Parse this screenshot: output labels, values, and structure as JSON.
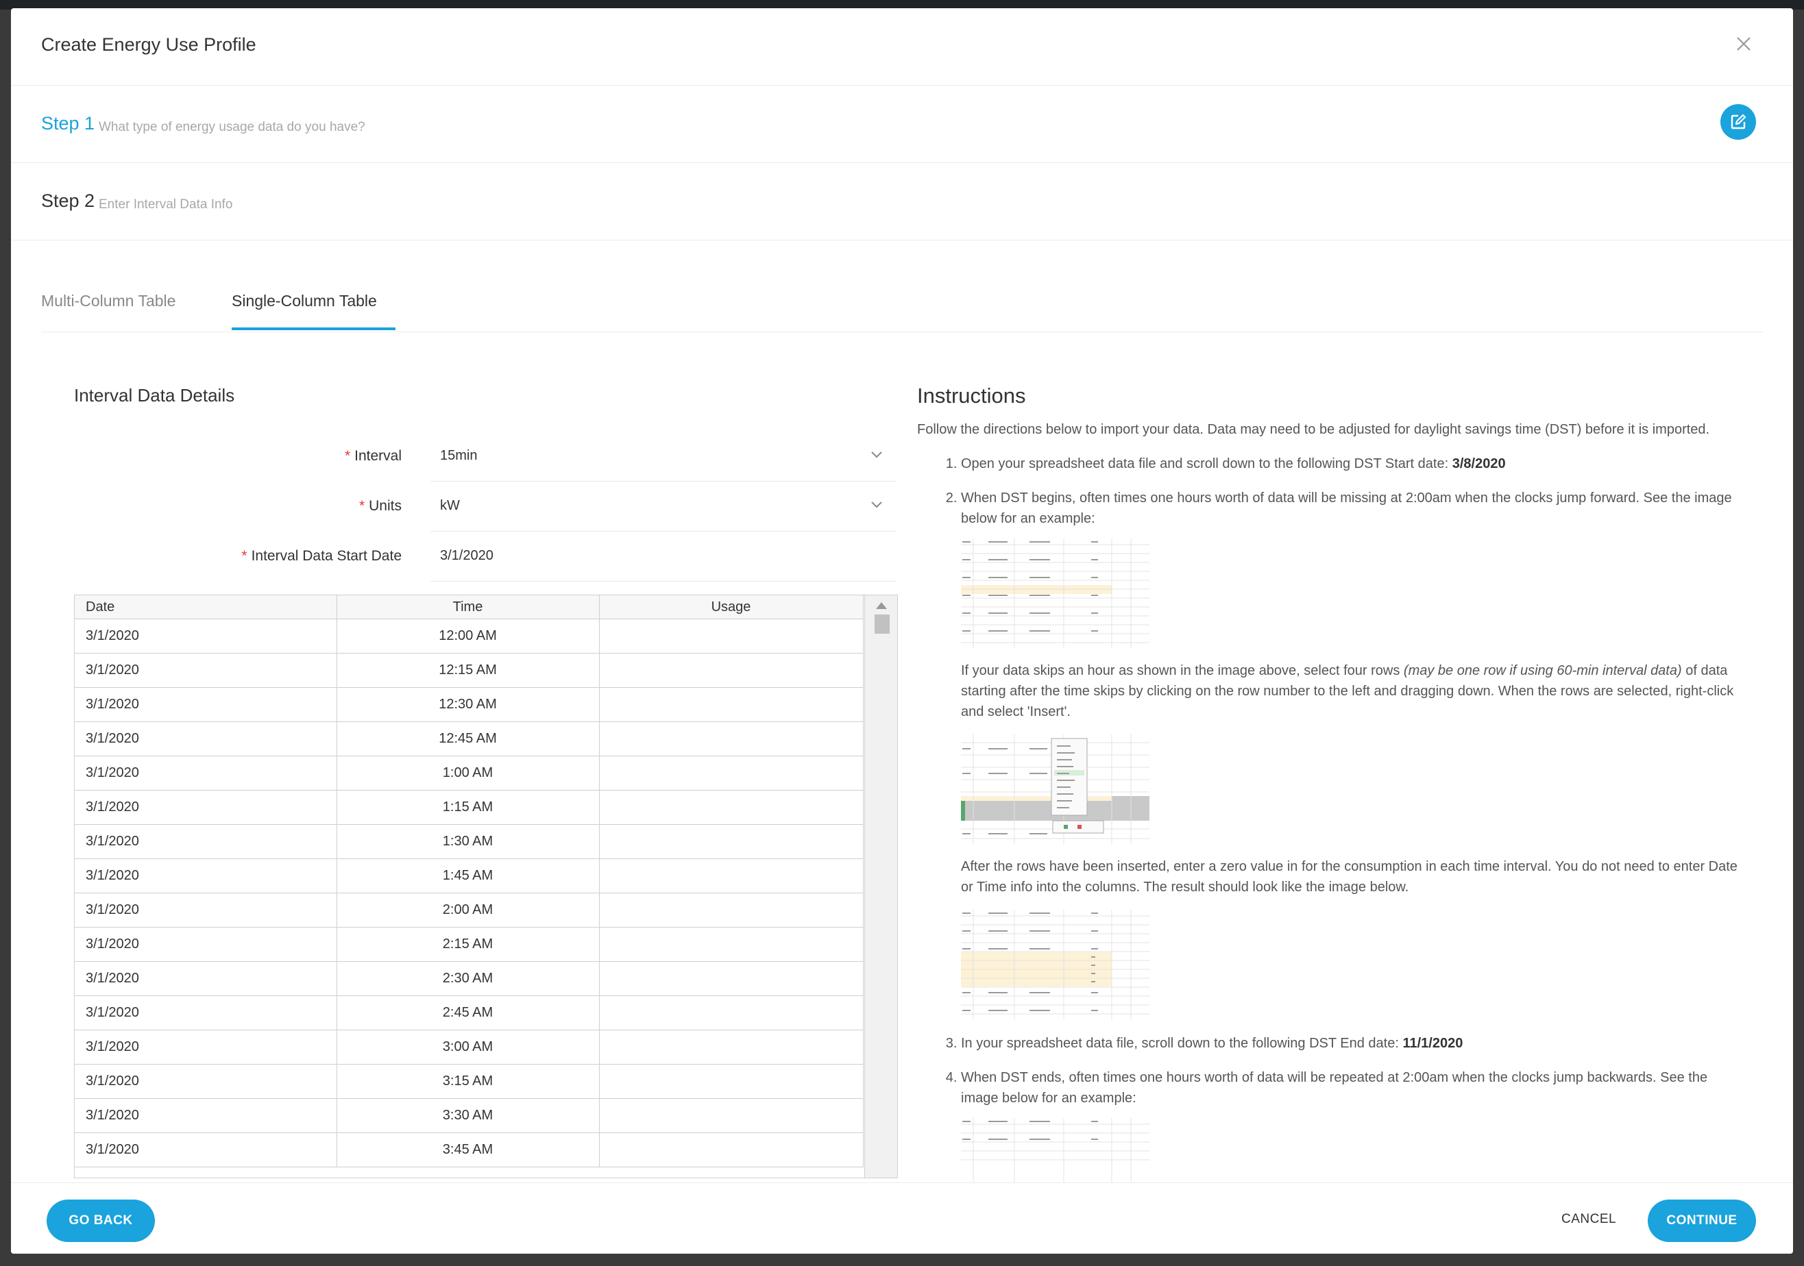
{
  "modal": {
    "title": "Create Energy Use Profile"
  },
  "steps": [
    {
      "label": "Step 1",
      "desc": "What type of energy usage data do you have?"
    },
    {
      "label": "Step 2",
      "desc": "Enter Interval Data Info"
    }
  ],
  "tabs": [
    {
      "label": "Multi-Column Table"
    },
    {
      "label": "Single-Column Table",
      "active": true
    }
  ],
  "details": {
    "title": "Interval Data Details",
    "fields": [
      {
        "label": "Interval",
        "value": "15min"
      },
      {
        "label": "Units",
        "value": "kW"
      },
      {
        "label": "Interval Data Start Date",
        "value": "3/1/2020"
      }
    ]
  },
  "table": {
    "headers": [
      "Date",
      "Time",
      "Usage"
    ],
    "rows": [
      {
        "date": "3/1/2020",
        "time": "12:00 AM",
        "usage": ""
      },
      {
        "date": "3/1/2020",
        "time": "12:15 AM",
        "usage": ""
      },
      {
        "date": "3/1/2020",
        "time": "12:30 AM",
        "usage": ""
      },
      {
        "date": "3/1/2020",
        "time": "12:45 AM",
        "usage": ""
      },
      {
        "date": "3/1/2020",
        "time": "1:00 AM",
        "usage": ""
      },
      {
        "date": "3/1/2020",
        "time": "1:15 AM",
        "usage": ""
      },
      {
        "date": "3/1/2020",
        "time": "1:30 AM",
        "usage": ""
      },
      {
        "date": "3/1/2020",
        "time": "1:45 AM",
        "usage": ""
      },
      {
        "date": "3/1/2020",
        "time": "2:00 AM",
        "usage": ""
      },
      {
        "date": "3/1/2020",
        "time": "2:15 AM",
        "usage": ""
      },
      {
        "date": "3/1/2020",
        "time": "2:30 AM",
        "usage": ""
      },
      {
        "date": "3/1/2020",
        "time": "2:45 AM",
        "usage": ""
      },
      {
        "date": "3/1/2020",
        "time": "3:00 AM",
        "usage": ""
      },
      {
        "date": "3/1/2020",
        "time": "3:15 AM",
        "usage": ""
      },
      {
        "date": "3/1/2020",
        "time": "3:30 AM",
        "usage": ""
      },
      {
        "date": "3/1/2020",
        "time": "3:45 AM",
        "usage": ""
      }
    ]
  },
  "instructions": {
    "title": "Instructions",
    "intro": "Follow the directions below to import your data. Data may need to be adjusted for daylight savings time (DST) before it is imported.",
    "step1_text": "Open your spreadsheet data file and scroll down to the following DST Start date: ",
    "step1_date": "3/8/2020",
    "step2_text": "When DST begins, often times one hours worth of data will be missing at 2:00am when the clocks jump forward. See the image below for an example:",
    "step2_p2_before": "If your data skips an hour as shown in the image above, select four rows ",
    "step2_p2_italic": "(may be one row if using 60-min interval data)",
    "step2_p2_after": " of data starting after the time skips by clicking on the row number to the left and dragging down. When the rows are selected, right-click and select 'Insert'.",
    "step2_p3": "After the rows have been inserted, enter a zero value in for the consumption in each time interval. You do not need to enter Date or Time info into the columns. The result should look like the image below.",
    "step3_text": "In your spreadsheet data file, scroll down to the following DST End date: ",
    "step3_date": "11/1/2020",
    "step4_text": "When DST ends, often times one hours worth of data will be repeated at 2:00am when the clocks jump backwards. See the image below for an example:"
  },
  "footer": {
    "back": "GO BACK",
    "cancel": "CANCEL",
    "continue": "CONTINUE"
  },
  "colors": {
    "accent": "#1aa3dc",
    "required": "#e53935",
    "highlight": "#fdf1d6"
  }
}
